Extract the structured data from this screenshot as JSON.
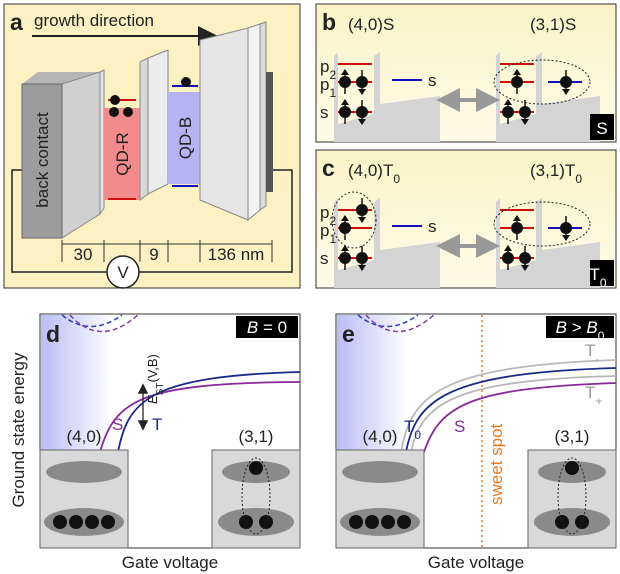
{
  "panel_a": {
    "label": "a",
    "growth_direction": "growth direction",
    "back_contact": "back contact",
    "qd_r": "QD-R",
    "qd_b": "QD-B",
    "widths": [
      "30",
      "9",
      "136 nm"
    ],
    "voltage": "V"
  },
  "panel_b": {
    "label": "b",
    "left_state": "(4,0)S",
    "right_state": "(3,1)S",
    "levels": [
      {
        "base": "p",
        "sub": "2"
      },
      {
        "base": "p",
        "sub": "1"
      },
      {
        "base": "s"
      }
    ],
    "right_level": "s",
    "badge": "S"
  },
  "panel_c": {
    "label": "c",
    "left_state": {
      "base": "(4,0)T",
      "sub": "0"
    },
    "right_state": {
      "base": "(3,1)T",
      "sub": "0"
    },
    "levels": [
      {
        "base": "p",
        "sub": "2"
      },
      {
        "base": "p",
        "sub": "1"
      },
      {
        "base": "s"
      }
    ],
    "right_level": "s",
    "badge": {
      "base": "T",
      "sub": "0"
    }
  },
  "panel_d": {
    "label": "d",
    "y_label": "Ground state energy",
    "x_label": "Gate voltage",
    "field": {
      "var": "B",
      "rest": " = 0"
    },
    "splitting": {
      "var": "E",
      "sub": "ST",
      "rest": "(V,B)"
    },
    "curve_labels": [
      "S",
      "T"
    ],
    "regions": [
      "(4,0)",
      "(3,1)"
    ]
  },
  "panel_e": {
    "label": "e",
    "x_label": "Gate voltage",
    "field": {
      "var": "B",
      "op": " > ",
      "var2": "B",
      "sub": "0"
    },
    "curve_labels": [
      {
        "base": "T",
        "sub": "0"
      },
      {
        "base": "S"
      },
      {
        "base": "T",
        "sub": "-"
      },
      {
        "base": "T",
        "sub": "+"
      }
    ],
    "sweet_spot": "sweet spot",
    "regions": [
      "(4,0)",
      "(3,1)"
    ]
  }
}
